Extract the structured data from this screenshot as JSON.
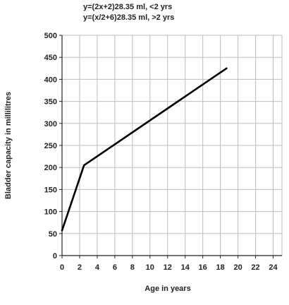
{
  "chart_data": {
    "type": "line",
    "title": "",
    "annotations": [
      "y=(2x+2)28.35 ml, <2 yrs",
      "y=(x/2+6)28.35 ml, >2 yrs"
    ],
    "xlabel": "Age in years",
    "ylabel": "Bladder capacity in millilitres",
    "xlim": [
      0,
      25
    ],
    "ylim": [
      0,
      500
    ],
    "xticks": [
      0,
      2,
      4,
      6,
      8,
      10,
      12,
      14,
      16,
      18,
      20,
      22,
      24
    ],
    "yticks": [
      0,
      50,
      100,
      150,
      200,
      250,
      300,
      350,
      400,
      450,
      500
    ],
    "grid": true,
    "series": [
      {
        "points": [
          {
            "x": 0,
            "y": 57
          },
          {
            "x": 2.5,
            "y": 205
          },
          {
            "x": 18.7,
            "y": 425
          }
        ],
        "color": "#000000"
      }
    ]
  }
}
